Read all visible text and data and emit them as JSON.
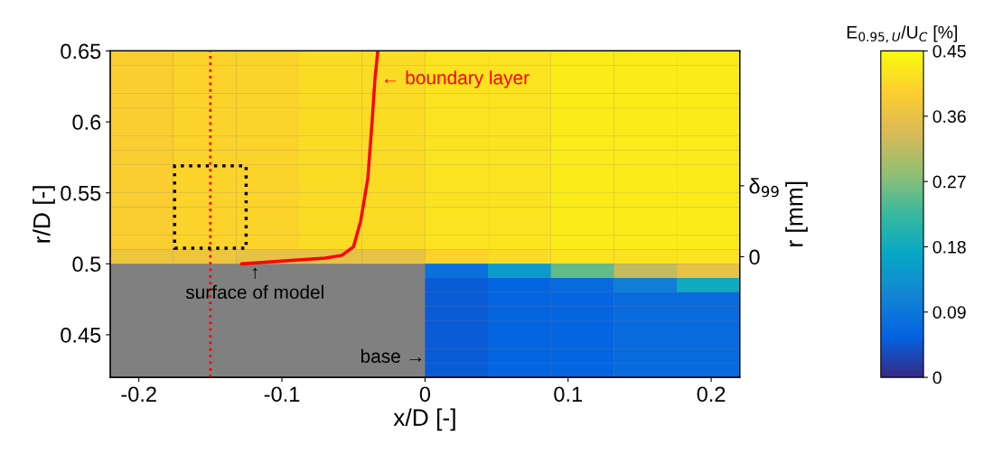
{
  "chart_data": {
    "type": "heatmap",
    "xlabel": "x/D [-]",
    "ylabel": "r/D [-]",
    "y2label": "r [mm]",
    "clabel": "E$_{0.95,U}$/U$_{C}$ [%]",
    "x": [
      -0.198,
      -0.154,
      -0.11,
      -0.066,
      -0.022,
      0.022,
      0.066,
      0.11,
      0.154,
      0.198
    ],
    "y": [
      0.645,
      0.635,
      0.625,
      0.615,
      0.605,
      0.595,
      0.585,
      0.575,
      0.565,
      0.555,
      0.545,
      0.535,
      0.525,
      0.515,
      0.505,
      0.495,
      0.485,
      0.475,
      0.465,
      0.455,
      0.445,
      0.435,
      0.425
    ],
    "cells": [
      [
        0.39,
        0.4,
        0.4,
        0.41,
        0.41,
        0.42,
        0.42,
        0.43,
        0.43,
        0.43
      ],
      [
        0.39,
        0.4,
        0.4,
        0.41,
        0.41,
        0.42,
        0.42,
        0.43,
        0.43,
        0.43
      ],
      [
        0.39,
        0.4,
        0.4,
        0.41,
        0.41,
        0.42,
        0.42,
        0.43,
        0.43,
        0.43
      ],
      [
        0.39,
        0.4,
        0.4,
        0.41,
        0.41,
        0.42,
        0.42,
        0.43,
        0.43,
        0.43
      ],
      [
        0.39,
        0.4,
        0.4,
        0.41,
        0.41,
        0.42,
        0.42,
        0.43,
        0.43,
        0.43
      ],
      [
        0.39,
        0.4,
        0.4,
        0.41,
        0.41,
        0.42,
        0.42,
        0.43,
        0.43,
        0.43
      ],
      [
        0.39,
        0.4,
        0.4,
        0.41,
        0.41,
        0.42,
        0.42,
        0.43,
        0.43,
        0.43
      ],
      [
        0.39,
        0.4,
        0.4,
        0.41,
        0.41,
        0.42,
        0.42,
        0.43,
        0.43,
        0.43
      ],
      [
        0.39,
        0.4,
        0.4,
        0.41,
        0.41,
        0.42,
        0.42,
        0.43,
        0.43,
        0.43
      ],
      [
        0.39,
        0.4,
        0.4,
        0.41,
        0.41,
        0.42,
        0.42,
        0.43,
        0.43,
        0.43
      ],
      [
        0.39,
        0.4,
        0.4,
        0.41,
        0.41,
        0.42,
        0.42,
        0.43,
        0.43,
        0.43
      ],
      [
        0.39,
        0.4,
        0.4,
        0.41,
        0.41,
        0.42,
        0.42,
        0.43,
        0.43,
        0.43
      ],
      [
        0.39,
        0.4,
        0.4,
        0.41,
        0.41,
        0.42,
        0.42,
        0.43,
        0.43,
        0.43
      ],
      [
        0.39,
        0.4,
        0.4,
        0.41,
        0.41,
        0.42,
        0.42,
        0.43,
        0.43,
        0.43
      ],
      [
        0.37,
        0.37,
        0.36,
        0.36,
        0.36,
        0.4,
        0.41,
        0.42,
        0.42,
        0.42
      ],
      [
        null,
        null,
        null,
        null,
        null,
        0.08,
        0.15,
        0.25,
        0.32,
        0.36
      ],
      [
        null,
        null,
        null,
        null,
        null,
        0.05,
        0.06,
        0.07,
        0.1,
        0.18
      ],
      [
        null,
        null,
        null,
        null,
        null,
        0.05,
        0.06,
        0.06,
        0.07,
        0.07
      ],
      [
        null,
        null,
        null,
        null,
        null,
        0.05,
        0.06,
        0.06,
        0.07,
        0.07
      ],
      [
        null,
        null,
        null,
        null,
        null,
        0.05,
        0.06,
        0.06,
        0.07,
        0.07
      ],
      [
        null,
        null,
        null,
        null,
        null,
        0.05,
        0.06,
        0.06,
        0.07,
        0.07
      ],
      [
        null,
        null,
        null,
        null,
        null,
        0.05,
        0.06,
        0.06,
        0.07,
        0.07
      ],
      [
        null,
        null,
        null,
        null,
        null,
        0.05,
        0.06,
        0.06,
        0.07,
        0.07
      ]
    ],
    "clim": [
      0,
      0.45
    ],
    "cticks": [
      0,
      0.09,
      0.18,
      0.27,
      0.36,
      0.45
    ],
    "xlim": [
      -0.22,
      0.22
    ],
    "xticks": [
      -0.2,
      -0.1,
      0,
      0.1,
      0.2
    ],
    "ylim": [
      0.42,
      0.65
    ],
    "yticks": [
      0.45,
      0.5,
      0.55,
      0.6,
      0.65
    ],
    "y2_categories": [
      null,
      null,
      null,
      null,
      null,
      null,
      null,
      null,
      null,
      "δ$_{99}$",
      null,
      null,
      null,
      null,
      "0",
      null,
      null,
      null,
      null,
      null,
      null,
      null,
      null
    ],
    "series": [
      {
        "type": "line",
        "color": "#ff0000",
        "x": [
          -0.128,
          -0.1,
          -0.07,
          -0.058,
          -0.05,
          -0.045,
          -0.04,
          -0.037,
          -0.035,
          -0.033
        ],
        "values": [
          0.5,
          0.502,
          0.504,
          0.506,
          0.512,
          0.53,
          0.56,
          0.6,
          0.63,
          0.65
        ]
      }
    ],
    "ref_lines": [
      {
        "axis": "x",
        "value": -0.15,
        "color": "#ff0000",
        "line_style": "dotted"
      }
    ],
    "annotations": [
      "← boundary layer",
      "↑\nsurface of model",
      "base →"
    ]
  }
}
